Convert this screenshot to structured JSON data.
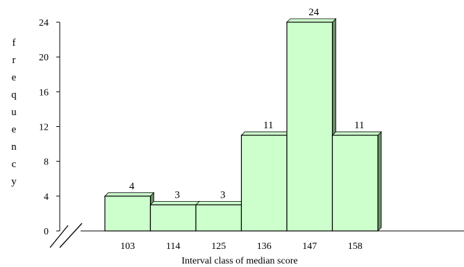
{
  "chart_data": {
    "type": "bar",
    "title": "",
    "xlabel": "Interval class of median score",
    "ylabel": "frequency",
    "categories": [
      "103",
      "114",
      "125",
      "136",
      "147",
      "158"
    ],
    "values": [
      4,
      3,
      3,
      11,
      24,
      11
    ],
    "data_labels": [
      "4",
      "3",
      "3",
      "11",
      "24",
      "11"
    ],
    "ylim": [
      0,
      24
    ],
    "yticks": [
      "0",
      "4",
      "8",
      "12",
      "16",
      "20",
      "24"
    ],
    "grid": false,
    "bar_color": "#ccffcc",
    "bar_edge_color": "#000000",
    "bar_shadow_color": "#6a8f6a",
    "axis_break": true
  }
}
